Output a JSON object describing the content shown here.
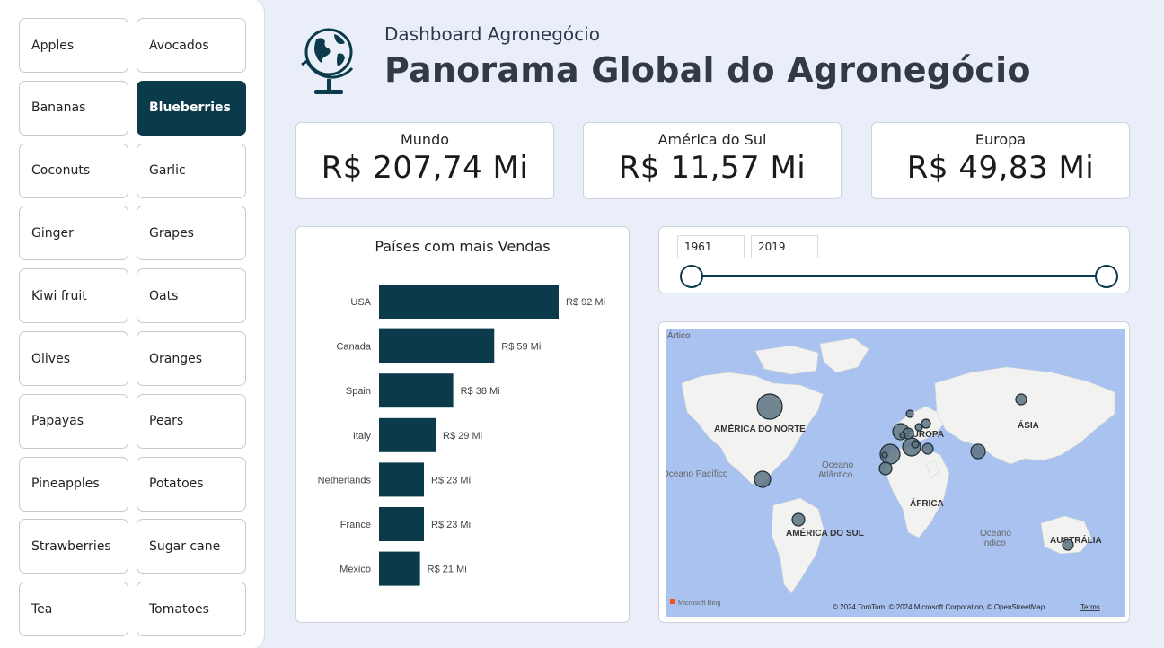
{
  "sidebar": {
    "items": [
      {
        "label": "Apples",
        "active": false
      },
      {
        "label": "Avocados",
        "active": false
      },
      {
        "label": "Bananas",
        "active": false
      },
      {
        "label": "Blueberries",
        "active": true
      },
      {
        "label": "Coconuts",
        "active": false
      },
      {
        "label": "Garlic",
        "active": false
      },
      {
        "label": "Ginger",
        "active": false
      },
      {
        "label": "Grapes",
        "active": false
      },
      {
        "label": "Kiwi fruit",
        "active": false
      },
      {
        "label": "Oats",
        "active": false
      },
      {
        "label": "Olives",
        "active": false
      },
      {
        "label": "Oranges",
        "active": false
      },
      {
        "label": "Papayas",
        "active": false
      },
      {
        "label": "Pears",
        "active": false
      },
      {
        "label": "Pineapples",
        "active": false
      },
      {
        "label": "Potatoes",
        "active": false
      },
      {
        "label": "Strawberries",
        "active": false
      },
      {
        "label": "Sugar cane",
        "active": false
      },
      {
        "label": "Tea",
        "active": false
      },
      {
        "label": "Tomatoes",
        "active": false
      }
    ]
  },
  "header": {
    "subtitle": "Dashboard Agronegócio",
    "title": "Panorama Global do Agronegócio",
    "icon": "globe-icon"
  },
  "kpis": [
    {
      "label": "Mundo",
      "value": "R$ 207,74 Mi"
    },
    {
      "label": "América do Sul",
      "value": "R$ 11,57 Mi"
    },
    {
      "label": "Europa",
      "value": "R$ 49,83 Mi"
    }
  ],
  "chart_data": {
    "type": "bar",
    "orientation": "horizontal",
    "title": "Países com mais Vendas",
    "categories": [
      "USA",
      "Canada",
      "Spain",
      "Italy",
      "Netherlands",
      "France",
      "Mexico"
    ],
    "values": [
      92,
      59,
      38,
      29,
      23,
      23,
      21
    ],
    "value_labels": [
      "R$ 92 Mi",
      "R$ 59 Mi",
      "R$ 38 Mi",
      "R$ 29 Mi",
      "R$ 23 Mi",
      "R$ 23 Mi",
      "R$ 21 Mi"
    ],
    "color": "#0b3b4a"
  },
  "slider": {
    "start": "1961",
    "end": "2019",
    "range_start": 0,
    "range_end": 1
  },
  "map": {
    "labels": {
      "artico": "Ártico",
      "north_america": "AMÉRICA DO NORTE",
      "europe": "EUROPA",
      "asia": "ÁSIA",
      "africa": "ÁFRICA",
      "south_america": "AMÉRICA DO SUL",
      "australia": "AUSTRÁLIA",
      "pacific": "Oceano Pacífico",
      "atlantic_1": "Oceano",
      "atlantic_2": "Atlântico",
      "indian_1": "Oceano",
      "indian_2": "Índico"
    },
    "bing": "Microsoft Bing",
    "attribution": "© 2024 TomTom, © 2024 Microsoft Corporation, © OpenStreetMap",
    "terms": "Terms",
    "bubble_color": "#5c7380"
  }
}
